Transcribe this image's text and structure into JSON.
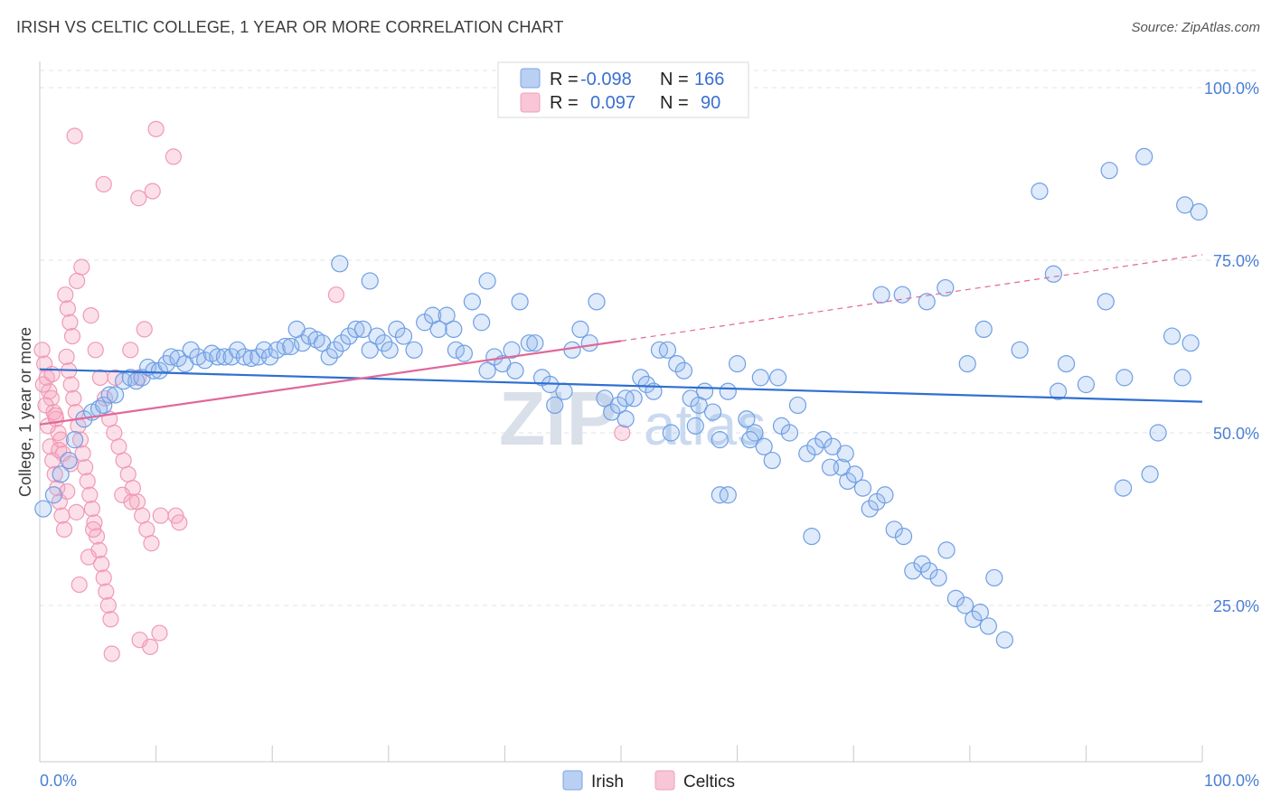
{
  "title": "IRISH VS CELTIC COLLEGE, 1 YEAR OR MORE CORRELATION CHART",
  "source": "Source: ZipAtlas.com",
  "watermark": {
    "zip": "ZIP",
    "atlas": "atlas"
  },
  "colors": {
    "irish": "#6f9fe4",
    "celtics": "#f09ab5",
    "irish_line": "#2e6fd1",
    "celtics_line": "#e0689a"
  },
  "legend": {
    "rows": [
      {
        "r_label": "R =",
        "r_value": "-0.098",
        "n_label": "N =",
        "n_value": "166"
      },
      {
        "r_label": "R =",
        "r_value": "0.097",
        "n_label": "N =",
        "n_value": "90"
      }
    ]
  },
  "bottom_legend": [
    "Irish",
    "Celtics"
  ],
  "chart_data": {
    "type": "scatter",
    "title": "IRISH VS CELTIC COLLEGE, 1 YEAR OR MORE CORRELATION CHART",
    "xlabel": "",
    "ylabel": "College, 1 year or more",
    "xlim": [
      0,
      100
    ],
    "ylim": [
      0,
      103
    ],
    "x_tick_labels": [
      "0.0%",
      "100.0%"
    ],
    "y_ticks": [
      25,
      50,
      75,
      100
    ],
    "y_tick_labels": [
      "25.0%",
      "50.0%",
      "75.0%",
      "100.0%"
    ],
    "grid": true,
    "legend_position": "top-center",
    "series": [
      {
        "name": "Irish",
        "r": -0.098,
        "n": 166,
        "trend": {
          "x": [
            0,
            100
          ],
          "y": [
            59.2,
            54.5
          ]
        },
        "points": [
          [
            0.3,
            39
          ],
          [
            1.2,
            41
          ],
          [
            1.8,
            44
          ],
          [
            2.5,
            46
          ],
          [
            3,
            49
          ],
          [
            3.8,
            52
          ],
          [
            4.5,
            53
          ],
          [
            5.1,
            53.5
          ],
          [
            5.5,
            54
          ],
          [
            6,
            55.5
          ],
          [
            6.5,
            55.5
          ],
          [
            7.2,
            57.5
          ],
          [
            7.8,
            58
          ],
          [
            8.3,
            57.5
          ],
          [
            8.8,
            58
          ],
          [
            9.3,
            59.5
          ],
          [
            9.8,
            59
          ],
          [
            10.3,
            59
          ],
          [
            10.9,
            60
          ],
          [
            11.3,
            61
          ],
          [
            11.9,
            60.8
          ],
          [
            12.5,
            60
          ],
          [
            13,
            62
          ],
          [
            13.6,
            61
          ],
          [
            14.2,
            60.5
          ],
          [
            14.8,
            61.5
          ],
          [
            15.3,
            61
          ],
          [
            15.9,
            61
          ],
          [
            16.5,
            61
          ],
          [
            17,
            62
          ],
          [
            17.6,
            61
          ],
          [
            18.2,
            60.8
          ],
          [
            18.8,
            61
          ],
          [
            19.3,
            62
          ],
          [
            19.8,
            61
          ],
          [
            20.4,
            62
          ],
          [
            21.1,
            62.5
          ],
          [
            21.6,
            62.5
          ],
          [
            22.1,
            65
          ],
          [
            22.6,
            63
          ],
          [
            23.2,
            64
          ],
          [
            23.8,
            63.5
          ],
          [
            24.3,
            63
          ],
          [
            24.9,
            61
          ],
          [
            25.4,
            62
          ],
          [
            26,
            63
          ],
          [
            26.6,
            64
          ],
          [
            27.2,
            65
          ],
          [
            27.8,
            65
          ],
          [
            28.4,
            62
          ],
          [
            29,
            64
          ],
          [
            29.6,
            63
          ],
          [
            30.1,
            62
          ],
          [
            30.7,
            65
          ],
          [
            31.3,
            64
          ],
          [
            32.2,
            62
          ],
          [
            33.1,
            66
          ],
          [
            33.8,
            67
          ],
          [
            34.3,
            65
          ],
          [
            35,
            67
          ],
          [
            35.8,
            62
          ],
          [
            36.5,
            61.5
          ],
          [
            37.2,
            69
          ],
          [
            38,
            66
          ],
          [
            38.5,
            59
          ],
          [
            39.1,
            61
          ],
          [
            39.8,
            60
          ],
          [
            40.6,
            62
          ],
          [
            41.3,
            69
          ],
          [
            42.1,
            63
          ],
          [
            42.6,
            63
          ],
          [
            43.2,
            58
          ],
          [
            43.9,
            57
          ],
          [
            44.3,
            54
          ],
          [
            45.1,
            56
          ],
          [
            45.8,
            62
          ],
          [
            46.5,
            65
          ],
          [
            47.3,
            63
          ],
          [
            47.9,
            69
          ],
          [
            48.6,
            55
          ],
          [
            49.2,
            53
          ],
          [
            49.8,
            54
          ],
          [
            50.4,
            52
          ],
          [
            51.1,
            55
          ],
          [
            51.7,
            58
          ],
          [
            52.2,
            57
          ],
          [
            52.8,
            56
          ],
          [
            53.3,
            62
          ],
          [
            54,
            62
          ],
          [
            54.8,
            60
          ],
          [
            55.4,
            59
          ],
          [
            56,
            55
          ],
          [
            56.7,
            54
          ],
          [
            57.2,
            56
          ],
          [
            57.9,
            53
          ],
          [
            58.5,
            49
          ],
          [
            59.2,
            56
          ],
          [
            60,
            60
          ],
          [
            60.8,
            52
          ],
          [
            61.5,
            50
          ],
          [
            62.3,
            48
          ],
          [
            63,
            46
          ],
          [
            63.8,
            51
          ],
          [
            64.5,
            50
          ],
          [
            65.2,
            54
          ],
          [
            66,
            47
          ],
          [
            66.7,
            48
          ],
          [
            67.4,
            49
          ],
          [
            68.2,
            48
          ],
          [
            69,
            45
          ],
          [
            69.5,
            43
          ],
          [
            70.1,
            44
          ],
          [
            70.8,
            42
          ],
          [
            71.4,
            39
          ],
          [
            72,
            40
          ],
          [
            72.7,
            41
          ],
          [
            73.5,
            36
          ],
          [
            74.3,
            35
          ],
          [
            75.1,
            30
          ],
          [
            75.9,
            31
          ],
          [
            76.5,
            30
          ],
          [
            77.3,
            29
          ],
          [
            78,
            33
          ],
          [
            78.8,
            26
          ],
          [
            79.6,
            25
          ],
          [
            80.3,
            23
          ],
          [
            80.9,
            24
          ],
          [
            81.6,
            22
          ],
          [
            82.1,
            29
          ],
          [
            83,
            20
          ],
          [
            25.8,
            74.5
          ],
          [
            28.4,
            72
          ],
          [
            35.6,
            65
          ],
          [
            38.5,
            72
          ],
          [
            40.9,
            59
          ],
          [
            50.4,
            55
          ],
          [
            54.3,
            50
          ],
          [
            56.4,
            51
          ],
          [
            58.5,
            41
          ],
          [
            59.2,
            41
          ],
          [
            61.1,
            49
          ],
          [
            62,
            58
          ],
          [
            63.5,
            58
          ],
          [
            66.4,
            35
          ],
          [
            68,
            45
          ],
          [
            69.3,
            47
          ],
          [
            72.4,
            70
          ],
          [
            74.2,
            70
          ],
          [
            76.3,
            69
          ],
          [
            77.9,
            71
          ],
          [
            79.8,
            60
          ],
          [
            81.2,
            65
          ],
          [
            84.3,
            62
          ],
          [
            87.6,
            56
          ],
          [
            93.2,
            42
          ],
          [
            95.5,
            44
          ],
          [
            98.3,
            58
          ],
          [
            99,
            63
          ],
          [
            86,
            85
          ],
          [
            92,
            88
          ],
          [
            95,
            90
          ],
          [
            98.5,
            83
          ],
          [
            87.2,
            73
          ],
          [
            88.3,
            60
          ],
          [
            90,
            57
          ],
          [
            91.7,
            69
          ],
          [
            93.3,
            58
          ],
          [
            96.2,
            50
          ],
          [
            97.4,
            64
          ],
          [
            99.7,
            82
          ]
        ]
      },
      {
        "name": "Celtics",
        "r": 0.097,
        "n": 90,
        "trend": {
          "x": [
            0,
            50
          ],
          "y": [
            51.2,
            63.3
          ]
        },
        "trend_extension": {
          "x": [
            50,
            100
          ],
          "y": [
            63.3,
            75.8
          ]
        },
        "points": [
          [
            0.2,
            62
          ],
          [
            0.4,
            60
          ],
          [
            0.6,
            58
          ],
          [
            0.8,
            56
          ],
          [
            1,
            55
          ],
          [
            1.2,
            53
          ],
          [
            1.4,
            52
          ],
          [
            1.6,
            50
          ],
          [
            1.8,
            49
          ],
          [
            2,
            47
          ],
          [
            0.3,
            57
          ],
          [
            0.5,
            54
          ],
          [
            0.7,
            51
          ],
          [
            0.9,
            48
          ],
          [
            1.1,
            46
          ],
          [
            1.3,
            44
          ],
          [
            1.5,
            42
          ],
          [
            1.7,
            40
          ],
          [
            1.9,
            38
          ],
          [
            2.1,
            36
          ],
          [
            2.3,
            61
          ],
          [
            2.5,
            59
          ],
          [
            2.7,
            57
          ],
          [
            2.9,
            55
          ],
          [
            3.1,
            53
          ],
          [
            3.3,
            51
          ],
          [
            3.5,
            49
          ],
          [
            3.7,
            47
          ],
          [
            3.9,
            45
          ],
          [
            4.1,
            43
          ],
          [
            4.3,
            41
          ],
          [
            4.5,
            39
          ],
          [
            4.7,
            37
          ],
          [
            4.9,
            35
          ],
          [
            5.1,
            33
          ],
          [
            5.3,
            31
          ],
          [
            5.5,
            29
          ],
          [
            5.7,
            27
          ],
          [
            5.9,
            25
          ],
          [
            6.1,
            23
          ],
          [
            2.2,
            70
          ],
          [
            2.4,
            68
          ],
          [
            2.6,
            66
          ],
          [
            2.8,
            64
          ],
          [
            3.2,
            72
          ],
          [
            3.6,
            74
          ],
          [
            4.4,
            67
          ],
          [
            4.8,
            62
          ],
          [
            5.2,
            58
          ],
          [
            5.6,
            55
          ],
          [
            6,
            52
          ],
          [
            6.4,
            50
          ],
          [
            6.8,
            48
          ],
          [
            7.2,
            46
          ],
          [
            7.6,
            44
          ],
          [
            8,
            42
          ],
          [
            8.4,
            40
          ],
          [
            8.8,
            38
          ],
          [
            9.2,
            36
          ],
          [
            9.6,
            34
          ],
          [
            3,
            93
          ],
          [
            5.5,
            86
          ],
          [
            8.5,
            84
          ],
          [
            9.7,
            85
          ],
          [
            10,
            94
          ],
          [
            11.5,
            90
          ],
          [
            7.8,
            62
          ],
          [
            8.5,
            58
          ],
          [
            9,
            65
          ],
          [
            10.4,
            38
          ],
          [
            6.5,
            58
          ],
          [
            7.1,
            41
          ],
          [
            7.9,
            40
          ],
          [
            8.6,
            20
          ],
          [
            9.5,
            19
          ],
          [
            10.3,
            21
          ],
          [
            11.7,
            38
          ],
          [
            12,
            37
          ],
          [
            3.4,
            28
          ],
          [
            4.2,
            32
          ],
          [
            4.6,
            36
          ],
          [
            6.2,
            18
          ],
          [
            25.5,
            70
          ],
          [
            50.1,
            50
          ],
          [
            1.05,
            58.5
          ],
          [
            1.35,
            52.5
          ],
          [
            1.65,
            47.5
          ],
          [
            2.35,
            41.5
          ],
          [
            2.65,
            45.5
          ],
          [
            3.15,
            38.5
          ]
        ]
      }
    ]
  }
}
